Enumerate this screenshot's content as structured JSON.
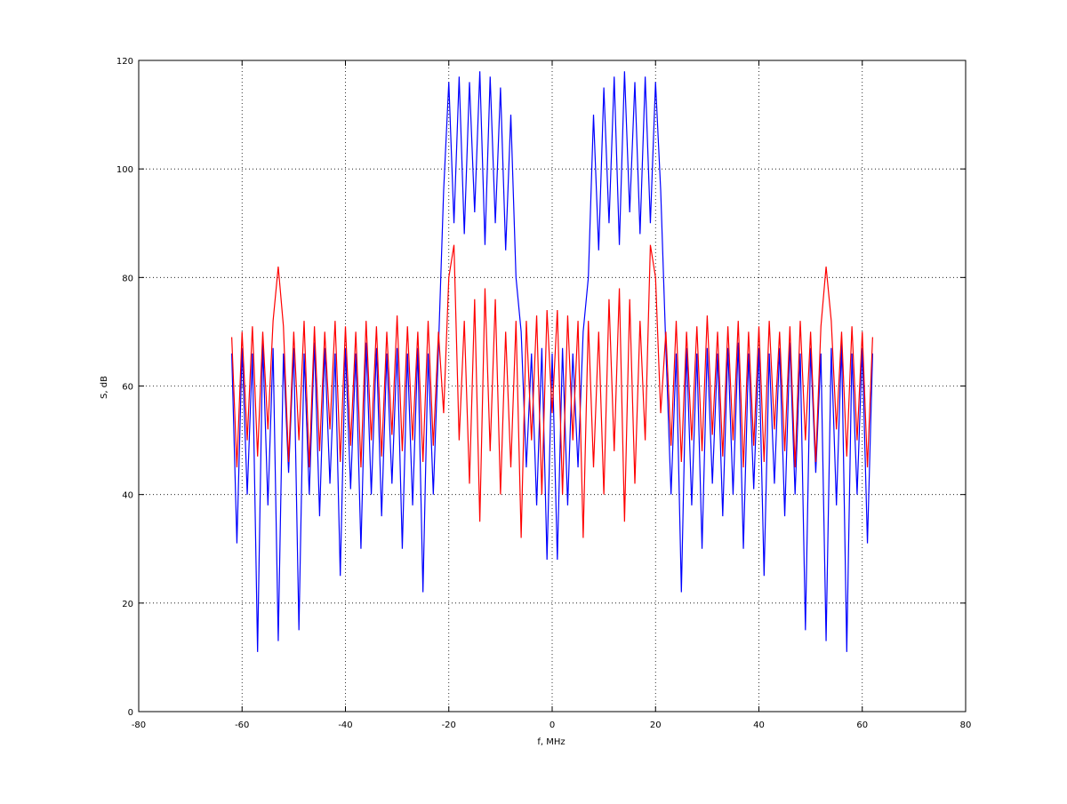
{
  "chart_data": {
    "type": "line",
    "xlabel": "f, MHz",
    "ylabel": "S, dB",
    "x": [
      -62,
      -61,
      -60,
      -59,
      -58,
      -57,
      -56,
      -55,
      -54,
      -53,
      -52,
      -51,
      -50,
      -49,
      -48,
      -47,
      -46,
      -45,
      -44,
      -43,
      -42,
      -41,
      -40,
      -39,
      -38,
      -37,
      -36,
      -35,
      -34,
      -33,
      -32,
      -31,
      -30,
      -29,
      -28,
      -27,
      -26,
      -25,
      -24,
      -23,
      -22,
      -21,
      -20,
      -19,
      -18,
      -17,
      -16,
      -15,
      -14,
      -13,
      -12,
      -11,
      -10,
      -9,
      -8,
      -7,
      -6,
      -5,
      -4,
      -3,
      -2,
      -1,
      0,
      1,
      2,
      3,
      4,
      5,
      6,
      7,
      8,
      9,
      10,
      11,
      12,
      13,
      14,
      15,
      16,
      17,
      18,
      19,
      20,
      21,
      22,
      23,
      24,
      25,
      26,
      27,
      28,
      29,
      30,
      31,
      32,
      33,
      34,
      35,
      36,
      37,
      38,
      39,
      40,
      41,
      42,
      43,
      44,
      45,
      46,
      47,
      48,
      49,
      50,
      51,
      52,
      53,
      54,
      55,
      56,
      57,
      58,
      59,
      60,
      61,
      62
    ],
    "series": [
      {
        "color": "#0000ff",
        "values": [
          66,
          31,
          67,
          40,
          66,
          11,
          68,
          38,
          67,
          13,
          66,
          44,
          67,
          15,
          66,
          40,
          68,
          36,
          67,
          42,
          66,
          25,
          67,
          41,
          66,
          30,
          68,
          40,
          67,
          36,
          66,
          42,
          67,
          30,
          66,
          38,
          67,
          22,
          66,
          40,
          67,
          96,
          116,
          90,
          117,
          88,
          116,
          92,
          118,
          86,
          117,
          90,
          115,
          85,
          110,
          80,
          70,
          45,
          66,
          38,
          67,
          28,
          66,
          28,
          67,
          38,
          66,
          45,
          70,
          80,
          110,
          85,
          115,
          90,
          117,
          86,
          118,
          92,
          116,
          88,
          117,
          90,
          116,
          96,
          67,
          40,
          66,
          22,
          67,
          38,
          66,
          30,
          67,
          42,
          66,
          36,
          67,
          40,
          68,
          30,
          66,
          41,
          67,
          25,
          66,
          42,
          67,
          36,
          68,
          40,
          66,
          15,
          67,
          44,
          66,
          13,
          67,
          38,
          68,
          11,
          66,
          40,
          67,
          31,
          66
        ]
      },
      {
        "color": "#ff0000",
        "values": [
          69,
          45,
          70,
          50,
          71,
          47,
          70,
          52,
          72,
          82,
          71,
          46,
          70,
          50,
          72,
          45,
          71,
          48,
          70,
          52,
          72,
          46,
          71,
          49,
          70,
          45,
          72,
          50,
          71,
          47,
          70,
          51,
          73,
          48,
          71,
          50,
          70,
          46,
          72,
          49,
          70,
          55,
          80,
          86,
          50,
          72,
          42,
          76,
          35,
          78,
          48,
          76,
          40,
          70,
          45,
          72,
          32,
          72,
          50,
          73,
          40,
          74,
          55,
          74,
          40,
          73,
          50,
          72,
          32,
          72,
          45,
          70,
          40,
          76,
          48,
          78,
          35,
          76,
          42,
          72,
          50,
          86,
          80,
          55,
          70,
          49,
          72,
          46,
          70,
          50,
          71,
          48,
          73,
          51,
          70,
          47,
          71,
          50,
          72,
          45,
          70,
          49,
          71,
          46,
          72,
          52,
          70,
          48,
          71,
          45,
          72,
          50,
          70,
          46,
          71,
          82,
          72,
          52,
          70,
          47,
          71,
          50,
          70,
          45,
          69
        ]
      }
    ],
    "xlim": [
      -80,
      80
    ],
    "ylim": [
      0,
      120
    ],
    "xticks": [
      -80,
      -60,
      -40,
      -20,
      0,
      20,
      40,
      60,
      80
    ],
    "yticks": [
      0,
      20,
      40,
      60,
      80,
      100,
      120
    ],
    "grid": true
  }
}
